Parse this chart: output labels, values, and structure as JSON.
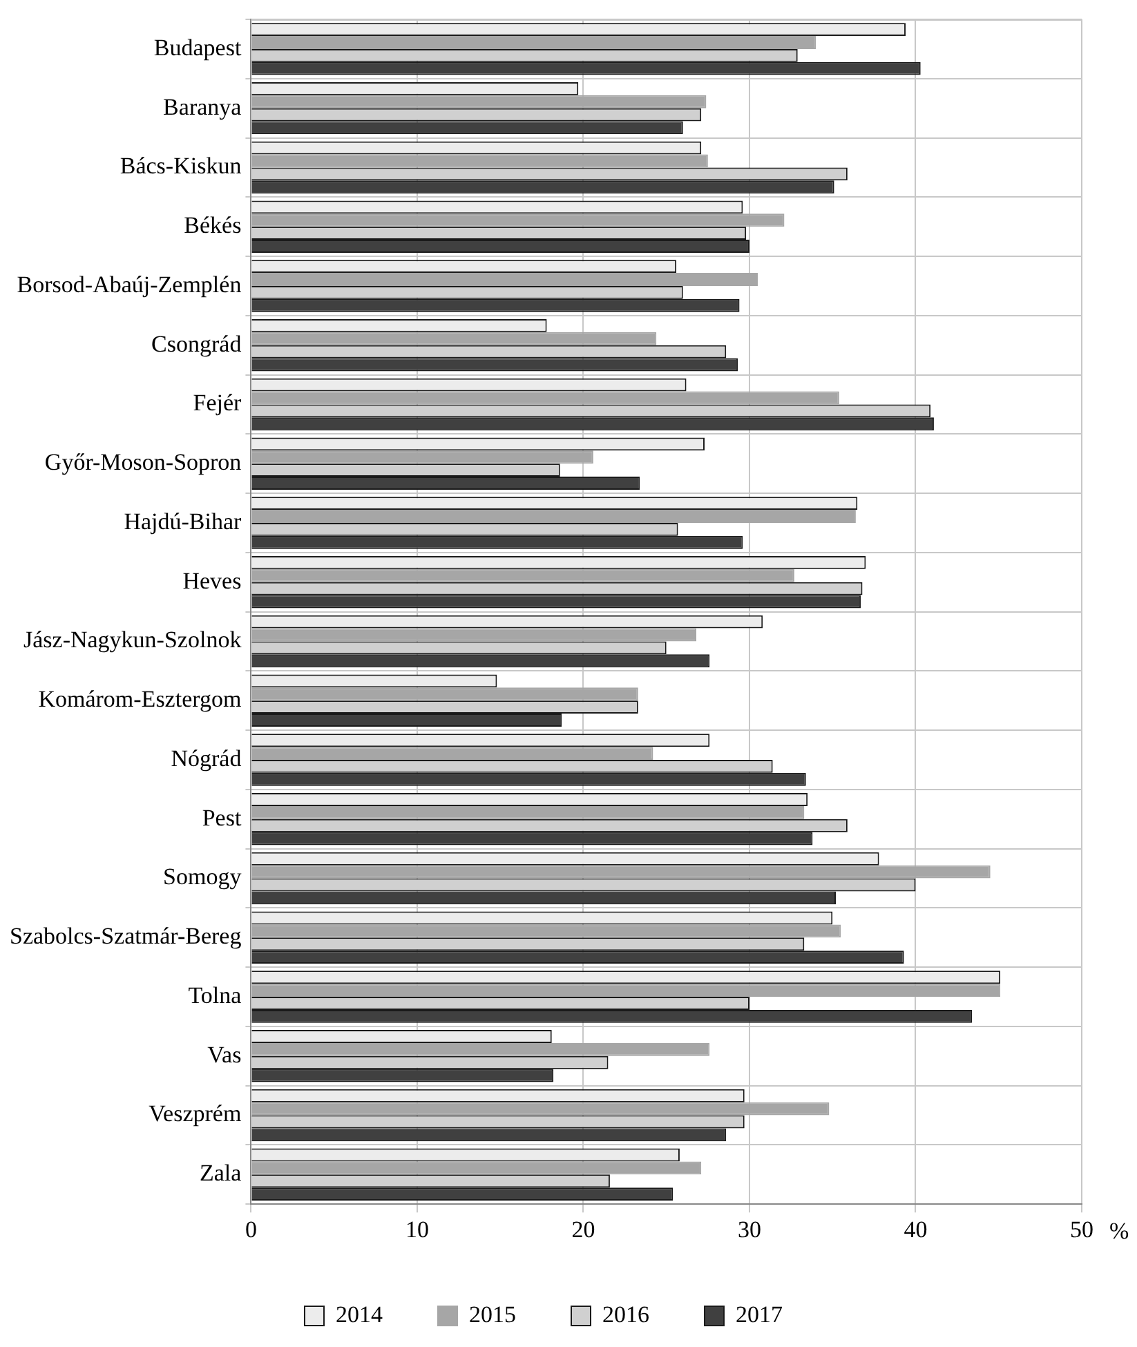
{
  "chart_data": {
    "type": "bar",
    "orientation": "horizontal",
    "xlabel": "%",
    "categories": [
      "Budapest",
      "Baranya",
      "Bács-Kiskun",
      "Békés",
      "Borsod-Abaúj-Zemplén",
      "Csongrád",
      "Fejér",
      "Győr-Moson-Sopron",
      "Hajdú-Bihar",
      "Heves",
      "Jász-Nagykun-Szolnok",
      "Komárom-Esztergom",
      "Nógrád",
      "Pest",
      "Somogy",
      "Szabolcs-Szatmár-Bereg",
      "Tolna",
      "Vas",
      "Veszprém",
      "Zala"
    ],
    "series": [
      {
        "name": "2014",
        "color": "#ececec",
        "values": [
          39.4,
          19.7,
          27.1,
          29.6,
          25.6,
          17.8,
          26.2,
          27.3,
          36.5,
          37.0,
          30.8,
          14.8,
          27.6,
          33.5,
          37.8,
          35.0,
          45.1,
          18.1,
          29.7,
          25.8
        ]
      },
      {
        "name": "2015",
        "color": "#a6a6a6",
        "values": [
          34.0,
          27.4,
          27.5,
          32.1,
          30.5,
          24.4,
          35.4,
          20.6,
          36.4,
          32.7,
          26.8,
          23.3,
          24.2,
          33.3,
          44.5,
          35.5,
          45.1,
          27.6,
          34.8,
          27.1
        ]
      },
      {
        "name": "2016",
        "color": "#d0d0d0",
        "values": [
          32.9,
          27.1,
          35.9,
          29.8,
          26.0,
          28.6,
          40.9,
          18.6,
          25.7,
          36.8,
          25.0,
          23.3,
          31.4,
          35.9,
          40.0,
          33.3,
          30.0,
          21.5,
          29.7,
          21.6
        ]
      },
      {
        "name": "2017",
        "color": "#404040",
        "values": [
          40.3,
          26.0,
          35.1,
          30.0,
          29.4,
          29.3,
          41.1,
          23.4,
          29.6,
          36.7,
          27.6,
          18.7,
          33.4,
          33.8,
          35.2,
          39.3,
          43.4,
          18.2,
          28.6,
          25.4
        ]
      }
    ],
    "xlim": [
      0,
      50
    ],
    "xticks": [
      0,
      10,
      20,
      30,
      40,
      50
    ],
    "grid": true,
    "legend": "bottom"
  }
}
